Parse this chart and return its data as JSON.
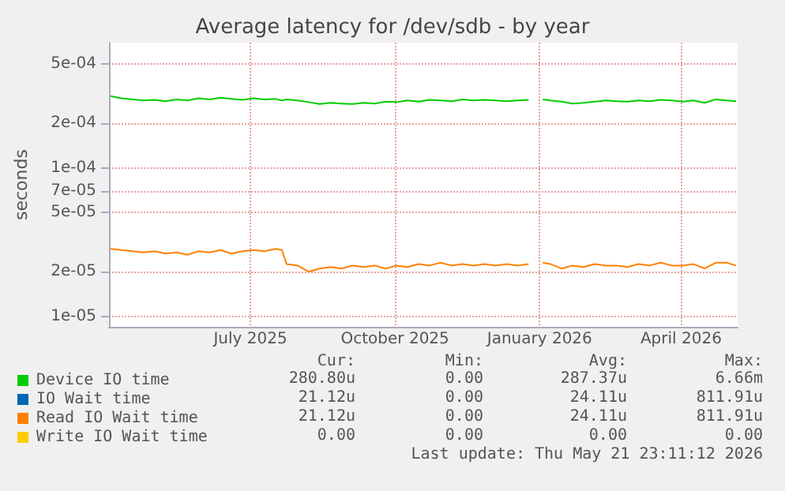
{
  "chart_data": {
    "type": "line",
    "title": "Average latency for /dev/sdb - by year",
    "ylabel": "seconds",
    "log": "y",
    "grid": true,
    "legend": "bottom left",
    "marker": "none",
    "line_style": "solid",
    "x": [
      "2025-04-03",
      "2025-04-10",
      "2025-04-17",
      "2025-04-24",
      "2025-05-01",
      "2025-05-08",
      "2025-05-15",
      "2025-05-22",
      "2025-05-29",
      "2025-06-05",
      "2025-06-12",
      "2025-06-19",
      "2025-06-26",
      "2025-07-03",
      "2025-07-10",
      "2025-07-17",
      "2025-07-21",
      "2025-07-24",
      "2025-07-31",
      "2025-08-07",
      "2025-08-14",
      "2025-08-21",
      "2025-08-28",
      "2025-09-04",
      "2025-09-11",
      "2025-09-18",
      "2025-09-25",
      "2025-10-02",
      "2025-10-09",
      "2025-10-16",
      "2025-10-23",
      "2025-10-30",
      "2025-11-06",
      "2025-11-13",
      "2025-11-20",
      "2025-11-27",
      "2025-12-04",
      "2025-12-11",
      "2025-12-18",
      "2025-12-25",
      "2025-12-31",
      "2026-01-03",
      "2026-01-08",
      "2026-01-15",
      "2026-01-22",
      "2026-01-29",
      "2026-02-05",
      "2026-02-12",
      "2026-02-19",
      "2026-02-26",
      "2026-03-05",
      "2026-03-12",
      "2026-03-19",
      "2026-03-26",
      "2026-04-02",
      "2026-04-09",
      "2026-04-16",
      "2026-04-23",
      "2026-04-30",
      "2026-05-06"
    ],
    "series": [
      {
        "name": "Device IO time",
        "color": "#00cc00",
        "values": [
          0.000305,
          0.000295,
          0.00029,
          0.000285,
          0.000288,
          0.000282,
          0.00029,
          0.000285,
          0.000295,
          0.00029,
          0.000298,
          0.000292,
          0.000288,
          0.000295,
          0.00029,
          0.000292,
          0.000285,
          0.00029,
          0.000285,
          0.000278,
          0.00027,
          0.000275,
          0.000272,
          0.00027,
          0.000275,
          0.000272,
          0.00028,
          0.000278,
          0.000285,
          0.00028,
          0.000288,
          0.000285,
          0.000282,
          0.00029,
          0.000285,
          0.000288,
          0.000285,
          0.000282,
          0.000285,
          0.000288,
          null,
          0.00029,
          0.000285,
          0.00028,
          0.000272,
          0.000275,
          0.00028,
          0.000285,
          0.000282,
          0.00028,
          0.000285,
          0.000282,
          0.000288,
          0.000285,
          0.00028,
          0.000285,
          0.000275,
          0.00029,
          0.000285,
          0.000282
        ]
      },
      {
        "name": "IO Wait time",
        "color": "#0066b3",
        "values": [
          null,
          null,
          null,
          null,
          null,
          null,
          null,
          null,
          null,
          null,
          null,
          null,
          null,
          null,
          null,
          null,
          null,
          null,
          null,
          null,
          null,
          null,
          null,
          null,
          null,
          null,
          null,
          null,
          null,
          null,
          null,
          null,
          null,
          null,
          null,
          null,
          null,
          null,
          null,
          null,
          null,
          null,
          null,
          null,
          null,
          null,
          null,
          null,
          null,
          null,
          null,
          null,
          null,
          null,
          null,
          null,
          null,
          null,
          null,
          null
        ]
      },
      {
        "name": "Read IO Wait time",
        "color": "#ff8000",
        "values": [
          2.85e-05,
          2.8e-05,
          2.75e-05,
          2.7e-05,
          2.75e-05,
          2.65e-05,
          2.7e-05,
          2.6e-05,
          2.75e-05,
          2.7e-05,
          2.8e-05,
          2.65e-05,
          2.75e-05,
          2.8e-05,
          2.75e-05,
          2.85e-05,
          2.8e-05,
          2.25e-05,
          2.2e-05,
          2e-05,
          2.1e-05,
          2.15e-05,
          2.1e-05,
          2.2e-05,
          2.15e-05,
          2.2e-05,
          2.1e-05,
          2.2e-05,
          2.15e-05,
          2.25e-05,
          2.2e-05,
          2.3e-05,
          2.2e-05,
          2.25e-05,
          2.2e-05,
          2.25e-05,
          2.2e-05,
          2.25e-05,
          2.2e-05,
          2.25e-05,
          null,
          2.3e-05,
          2.25e-05,
          2.1e-05,
          2.2e-05,
          2.15e-05,
          2.25e-05,
          2.2e-05,
          2.2e-05,
          2.15e-05,
          2.25e-05,
          2.2e-05,
          2.3e-05,
          2.2e-05,
          2.2e-05,
          2.25e-05,
          2.1e-05,
          2.3e-05,
          2.3e-05,
          2.2e-05
        ]
      },
      {
        "name": "Write IO Wait time",
        "color": "#ffcc00",
        "values": [
          null,
          null,
          null,
          null,
          null,
          null,
          null,
          null,
          null,
          null,
          null,
          null,
          null,
          null,
          null,
          null,
          null,
          null,
          null,
          null,
          null,
          null,
          null,
          null,
          null,
          null,
          null,
          null,
          null,
          null,
          null,
          null,
          null,
          null,
          null,
          null,
          null,
          null,
          null,
          null,
          null,
          null,
          null,
          null,
          null,
          null,
          null,
          null,
          null,
          null,
          null,
          null,
          null,
          null,
          null,
          null,
          null,
          null,
          null,
          null
        ]
      }
    ],
    "xlim": [
      "2025-04-02",
      "2026-05-07"
    ],
    "xticks": [
      {
        "value": "2025-07-01",
        "label": "July 2025"
      },
      {
        "value": "2025-10-01",
        "label": "October 2025"
      },
      {
        "value": "2026-01-01",
        "label": "January 2026"
      },
      {
        "value": "2026-04-01",
        "label": "April 2026"
      }
    ],
    "ylim": [
      8.5e-06,
      0.0007
    ],
    "yticks": [
      {
        "value": 1e-05,
        "label": "1e-05"
      },
      {
        "value": 2e-05,
        "label": "2e-05"
      },
      {
        "value": 5e-05,
        "label": "5e-05"
      },
      {
        "value": 7e-05,
        "label": "7e-05"
      },
      {
        "value": 0.0001,
        "label": "1e-04"
      },
      {
        "value": 0.0002,
        "label": "2e-04"
      },
      {
        "value": 0.0005,
        "label": "5e-04"
      }
    ],
    "annotations": [
      "Cur:",
      "Min:",
      "Avg:",
      "Max:",
      "280.80u",
      "0.00",
      "287.37u",
      "6.66m",
      "21.12u",
      "0.00",
      "24.11u",
      "811.91u",
      "21.12u",
      "0.00",
      "24.11u",
      "811.91u",
      "0.00",
      "0.00",
      "0.00",
      "0.00",
      "Last update: Thu May 21 23:11:12 2026"
    ]
  }
}
